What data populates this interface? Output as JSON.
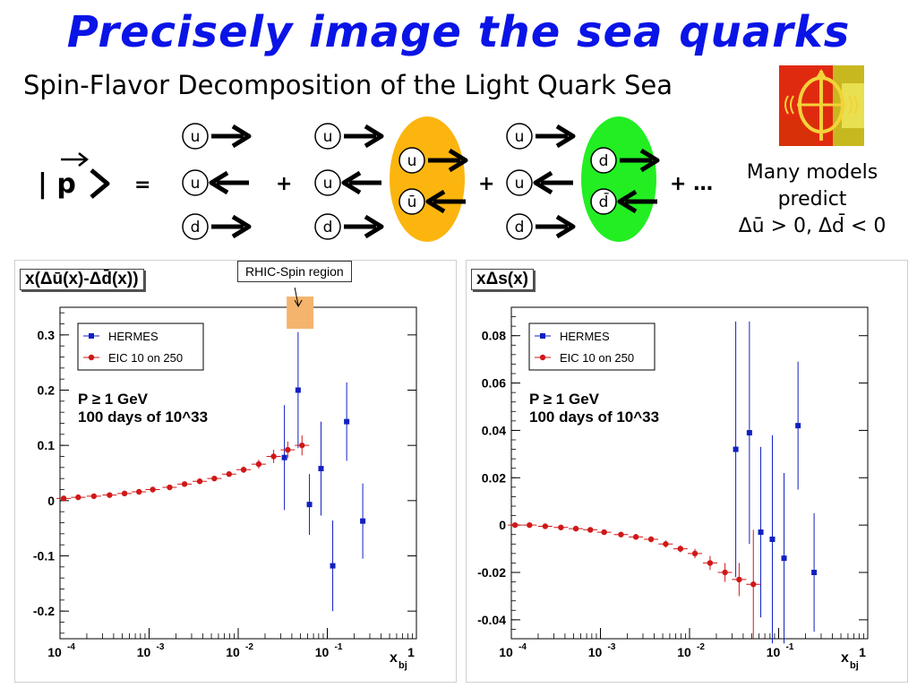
{
  "title": "Precisely image the sea quarks",
  "subtitle": "Spin-Flavor Decomposition of the Light Quark Sea",
  "formula": {
    "lhs": "| p",
    "eq": "=",
    "plus": "+",
    "ellipsis": "+ …",
    "groups": [
      {
        "quarks": [
          "u",
          "u",
          "d"
        ],
        "arrows": [
          "right",
          "left",
          "right"
        ]
      },
      {
        "quarks": [
          "u",
          "u",
          "d"
        ],
        "arrows": [
          "right",
          "left",
          "right"
        ],
        "pair": [
          "u",
          "ū"
        ],
        "pair_color": "#fbb50e"
      },
      {
        "quarks": [
          "u",
          "u",
          "d"
        ],
        "arrows": [
          "right",
          "left",
          "right"
        ],
        "pair": [
          "d",
          "d̄"
        ],
        "pair_color": "#22ee22"
      }
    ]
  },
  "models": {
    "line1": "Many models",
    "line2": "predict",
    "line3": "Δū > 0, Δd̄ < 0"
  },
  "rhic_label": "RHIC-Spin region",
  "colors": {
    "title": "#0a14e6",
    "hermes": "#1020c0",
    "eic": "#d01818",
    "rhic_band": "#f5b46e"
  },
  "chart_data": [
    {
      "type": "scatter",
      "title": "x(Δū(x)-Δd̄(x))",
      "xlabel": "x_bj",
      "xscale": "log",
      "xlim": [
        0.0001,
        1
      ],
      "ylim": [
        -0.25,
        0.35
      ],
      "yticks": [
        -0.2,
        -0.1,
        0,
        0.1,
        0.2,
        0.3
      ],
      "ytick_labels": [
        "-0.2",
        "-0.1",
        "0",
        "0.1",
        "0.2",
        "0.3"
      ],
      "xtick_labels": [
        "10",
        "10",
        "10",
        "10",
        "1"
      ],
      "xtick_exps": [
        "-4",
        "-3",
        "-2",
        "-1",
        ""
      ],
      "legend": [
        "HERMES",
        "EIC 10 on 250"
      ],
      "annotation": [
        "P ≥ 1 GeV",
        "100 days of 10^33"
      ],
      "rhic_band": [
        0.035,
        0.07
      ],
      "series": [
        {
          "name": "HERMES",
          "x": [
            0.033,
            0.047,
            0.063,
            0.085,
            0.115,
            0.165,
            0.25
          ],
          "y": [
            0.078,
            0.2,
            -0.007,
            0.058,
            -0.118,
            0.143,
            -0.037
          ],
          "err": [
            0.095,
            0.105,
            0.055,
            0.085,
            0.082,
            0.071,
            0.068
          ]
        },
        {
          "name": "EIC 10 on 250",
          "x": [
            0.00011,
            0.00016,
            0.00024,
            0.00036,
            0.00053,
            0.00077,
            0.0011,
            0.0017,
            0.0025,
            0.0037,
            0.0054,
            0.0079,
            0.0115,
            0.017,
            0.025,
            0.036,
            0.052
          ],
          "y": [
            0.004,
            0.006,
            0.008,
            0.01,
            0.013,
            0.016,
            0.02,
            0.024,
            0.03,
            0.035,
            0.04,
            0.048,
            0.056,
            0.066,
            0.08,
            0.092,
            0.1
          ],
          "err": [
            0.002,
            0.002,
            0.002,
            0.002,
            0.002,
            0.002,
            0.003,
            0.003,
            0.003,
            0.004,
            0.004,
            0.005,
            0.006,
            0.008,
            0.012,
            0.015,
            0.018
          ]
        }
      ]
    },
    {
      "type": "scatter",
      "title": "xΔs(x)",
      "xlabel": "x_bj",
      "xscale": "log",
      "xlim": [
        0.0001,
        1
      ],
      "ylim": [
        -0.048,
        0.092
      ],
      "yticks": [
        -0.04,
        -0.02,
        0,
        0.02,
        0.04,
        0.06,
        0.08
      ],
      "ytick_labels": [
        "-0.04",
        "-0.02",
        "0",
        "0.02",
        "0.04",
        "0.06",
        "0.08"
      ],
      "xtick_labels": [
        "10",
        "10",
        "10",
        "10",
        "1"
      ],
      "xtick_exps": [
        "-4",
        "-3",
        "-2",
        "-1",
        ""
      ],
      "legend": [
        "HERMES",
        "EIC 10 on 250"
      ],
      "annotation": [
        "P ≥ 1 GeV",
        "100 days of 10^33"
      ],
      "series": [
        {
          "name": "HERMES",
          "x": [
            0.033,
            0.047,
            0.063,
            0.085,
            0.115,
            0.165,
            0.25
          ],
          "y": [
            0.032,
            0.039,
            -0.003,
            -0.006,
            -0.014,
            0.042,
            -0.02
          ],
          "err": [
            0.054,
            0.047,
            0.036,
            0.044,
            0.036,
            0.027,
            0.025
          ]
        },
        {
          "name": "EIC 10 on 250",
          "x": [
            0.00011,
            0.00016,
            0.00024,
            0.00036,
            0.00053,
            0.00077,
            0.0011,
            0.0017,
            0.0025,
            0.0037,
            0.0054,
            0.0079,
            0.0115,
            0.017,
            0.025,
            0.036,
            0.052
          ],
          "y": [
            0,
            0,
            -0.0005,
            -0.001,
            -0.0015,
            -0.002,
            -0.003,
            -0.004,
            -0.005,
            -0.006,
            -0.008,
            -0.01,
            -0.012,
            -0.016,
            -0.02,
            -0.023,
            -0.025
          ],
          "err": [
            0.0008,
            0.0008,
            0.0008,
            0.0008,
            0.0008,
            0.001,
            0.001,
            0.001,
            0.0012,
            0.0012,
            0.0015,
            0.0015,
            0.002,
            0.003,
            0.004,
            0.007,
            0.023
          ]
        }
      ]
    }
  ]
}
